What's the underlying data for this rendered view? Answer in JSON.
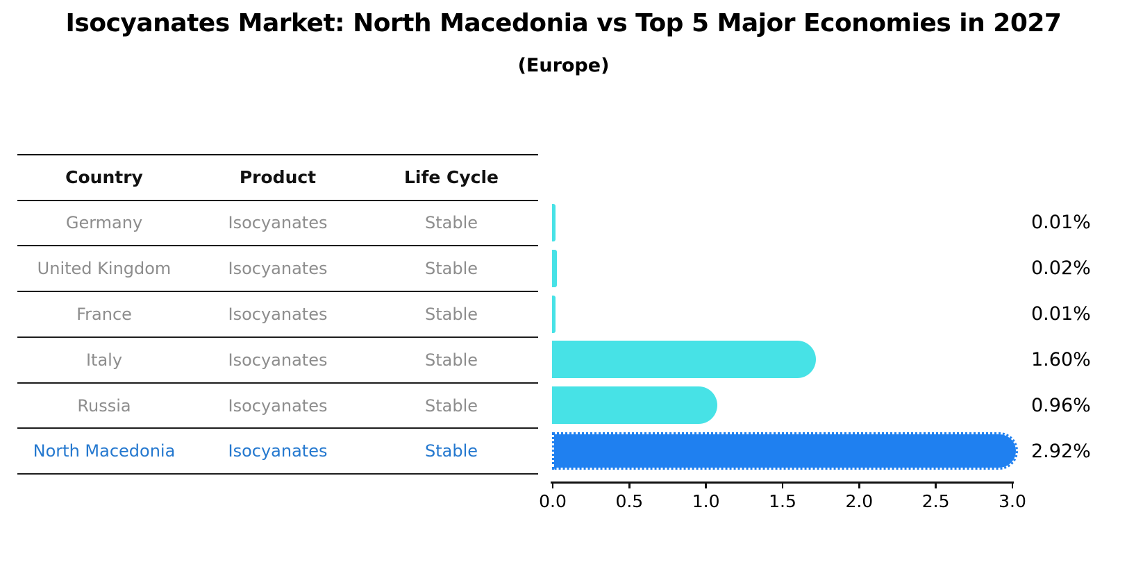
{
  "title": "Isocyanates Market: North Macedonia vs Top 5 Major Economies in 2027",
  "subtitle": "(Europe)",
  "table": {
    "headers": [
      "Country",
      "Product",
      "Life Cycle"
    ],
    "rows": [
      {
        "country": "Germany",
        "product": "Isocyanates",
        "life_cycle": "Stable",
        "highlight": false
      },
      {
        "country": "United Kingdom",
        "product": "Isocyanates",
        "life_cycle": "Stable",
        "highlight": false
      },
      {
        "country": "France",
        "product": "Isocyanates",
        "life_cycle": "Stable",
        "highlight": false
      },
      {
        "country": "Italy",
        "product": "Isocyanates",
        "life_cycle": "Stable",
        "highlight": false
      },
      {
        "country": "Russia",
        "product": "Isocyanates",
        "life_cycle": "Stable",
        "highlight": false
      },
      {
        "country": "North Macedonia",
        "product": "Isocyanates",
        "life_cycle": "Stable",
        "highlight": true
      }
    ]
  },
  "chart_data": {
    "type": "bar",
    "orientation": "horizontal",
    "title": "Isocyanates Market: North Macedonia vs Top 5 Major Economies in 2027",
    "subtitle": "(Europe)",
    "categories": [
      "Germany",
      "United Kingdom",
      "France",
      "Italy",
      "Russia",
      "North Macedonia"
    ],
    "values": [
      0.01,
      0.02,
      0.01,
      1.6,
      0.96,
      2.92
    ],
    "labels": [
      "0.01%",
      "0.02%",
      "0.01%",
      "1.60%",
      "0.96%",
      "2.92%"
    ],
    "x_ticks": [
      "0.0",
      "0.5",
      "1.0",
      "1.5",
      "2.0",
      "2.5",
      "3.0"
    ],
    "xlim": [
      0,
      3.0
    ],
    "grid": false,
    "legend": false,
    "bar_color": "#47e2e6",
    "highlight_color": "#1f80f0",
    "highlight_index": 5,
    "highlight_border_style": "dotted"
  },
  "colors": {
    "row_text": "#8d8d8d",
    "highlight_row_text": "#2478cf",
    "axis": "#111111",
    "label_text": "#000000"
  }
}
